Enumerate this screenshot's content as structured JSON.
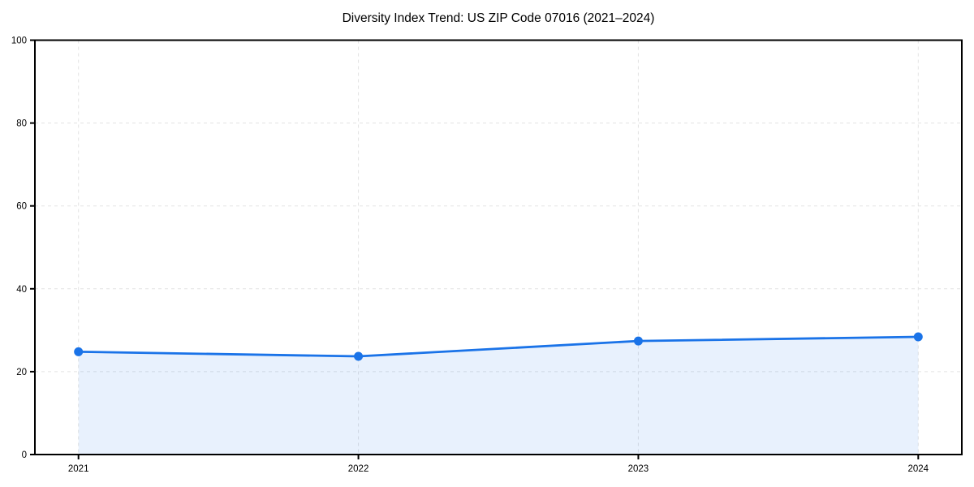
{
  "figure": {
    "background": "#ffffff"
  },
  "chart_data": {
    "type": "line",
    "subtype": "line-with-area-fill",
    "title": "Diversity Index Trend: US ZIP Code 07016 (2021–2024)",
    "categories": [
      "2021",
      "2022",
      "2023",
      "2024"
    ],
    "series": [
      {
        "name": "Diversity Index",
        "values": [
          24.8,
          23.7,
          27.4,
          28.4
        ]
      }
    ],
    "xlabel": "",
    "ylabel": "",
    "ylim": [
      0,
      100
    ],
    "yticks": [
      0,
      20,
      40,
      60,
      80,
      100
    ],
    "grid": true,
    "grid_style": "dashed",
    "legend": "none",
    "marker": "circle",
    "colors": {
      "line": "#1a73e8",
      "marker": "#1a73e8",
      "area_fill": "rgba(26, 115, 232, 0.10)",
      "grid": "#e3e3e3",
      "axis": "#000000",
      "tick_text": "#000000",
      "title_text": "#000000"
    }
  }
}
